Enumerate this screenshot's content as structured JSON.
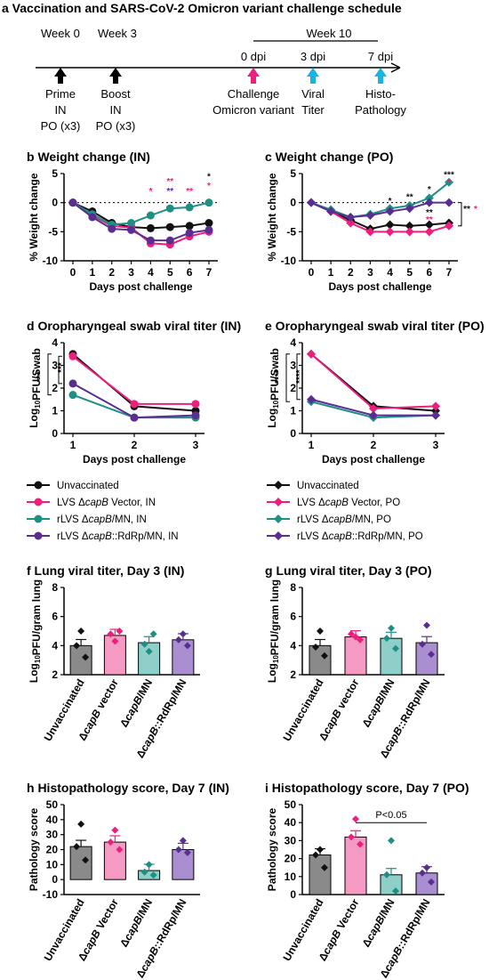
{
  "colors": {
    "black": "#111111",
    "pink": "#ee1e7d",
    "teal": "#1f8f84",
    "purple": "#5a2d91",
    "cyan": "#1ab3e6",
    "bar_black": "#8a8a8a",
    "bar_pink": "#f59ac2",
    "bar_teal": "#8fcfca",
    "bar_purple": "#a98fd0"
  },
  "schedule": {
    "title": "a Vaccination and SARS-CoV-2 Omicron variant challenge schedule",
    "week0": "Week 0",
    "week3": "Week 3",
    "week10": "Week 10",
    "prime": [
      "Prime",
      "IN",
      "PO (x3)"
    ],
    "boost": [
      "Boost",
      "IN",
      "PO (x3)"
    ],
    "dpi0": "0 dpi",
    "dpi3": "3 dpi",
    "dpi7": "7 dpi",
    "challenge": [
      "Challenge",
      "Omicron variant"
    ],
    "viral": [
      "Viral",
      "Titer"
    ],
    "histo": [
      "Histo-",
      "Pathology"
    ]
  },
  "legend_in": [
    "Unvaccinated",
    "LVS ΔcapB Vector,  IN",
    "rLVS ΔcapB/MN,  IN",
    "rLVS ΔcapB::RdRp/MN, IN"
  ],
  "legend_po": [
    "Unvaccinated",
    "LVS ΔcapB Vector,  PO",
    "rLVS ΔcapB/MN,  PO",
    "rLVS ΔcapB::RdRp/MN,  PO"
  ],
  "chart_data": [
    {
      "id": "b",
      "type": "line",
      "title": "b  Weight change (IN)",
      "ylabel": "% Weight change",
      "xlabel": "Days post challenge",
      "x": [
        0,
        1,
        2,
        3,
        4,
        5,
        6,
        7
      ],
      "ylim": [
        -10,
        5
      ],
      "yticks": [
        -10,
        -5,
        0,
        5
      ],
      "series": [
        {
          "name": "Unvaccinated",
          "values": [
            0,
            -1.5,
            -3.5,
            -4.2,
            -4.4,
            -4.2,
            -4.0,
            -3.5
          ]
        },
        {
          "name": "LVS ΔcapB Vector, IN",
          "values": [
            0,
            -2.2,
            -4.0,
            -4.3,
            -7.0,
            -7.2,
            -5.8,
            -5.0
          ]
        },
        {
          "name": "rLVS ΔcapB/MN, IN",
          "values": [
            0,
            -2.0,
            -3.8,
            -3.5,
            -2.2,
            -1.0,
            -0.8,
            0
          ]
        },
        {
          "name": "rLVS ΔcapB::RdRp/MN, IN",
          "values": [
            0,
            -2.5,
            -4.5,
            -4.7,
            -6.5,
            -6.5,
            -5.2,
            -4.7
          ]
        }
      ]
    },
    {
      "id": "c",
      "type": "line",
      "title": "c  Weight change (PO)",
      "ylabel": "% Weight change",
      "xlabel": "Days post challenge",
      "x": [
        0,
        1,
        2,
        3,
        4,
        5,
        6,
        7
      ],
      "ylim": [
        -10,
        5
      ],
      "yticks": [
        -10,
        -5,
        0,
        5
      ],
      "series": [
        {
          "name": "Unvaccinated",
          "values": [
            0,
            -1.5,
            -3.0,
            -4.5,
            -3.8,
            -4.0,
            -3.8,
            -3.5
          ]
        },
        {
          "name": "LVS ΔcapB Vector, PO",
          "values": [
            0,
            -1.5,
            -3.5,
            -5.0,
            -5.0,
            -5.0,
            -5.0,
            -4.0
          ]
        },
        {
          "name": "rLVS ΔcapB/MN, PO",
          "values": [
            0,
            -1.2,
            -2.5,
            -2.0,
            -1.0,
            -0.5,
            0.8,
            3.5
          ]
        },
        {
          "name": "rLVS ΔcapB::RdRp/MN, PO",
          "values": [
            0,
            -1.5,
            -2.5,
            -2.2,
            -1.5,
            -1.0,
            0,
            0
          ]
        }
      ]
    },
    {
      "id": "d",
      "type": "line",
      "title": "d  Oropharyngeal swab viral titer (IN)",
      "ylabel": "Log10PFU/Swab",
      "xlabel": "Days post challenge",
      "x": [
        1,
        2,
        3
      ],
      "ylim": [
        0,
        4
      ],
      "yticks": [
        0,
        1,
        2,
        3,
        4
      ],
      "series": [
        {
          "name": "Unvaccinated",
          "values": [
            3.5,
            1.2,
            1.0
          ]
        },
        {
          "name": "LVS ΔcapB Vector, IN",
          "values": [
            3.4,
            1.3,
            1.3
          ]
        },
        {
          "name": "rLVS ΔcapB/MN, IN",
          "values": [
            1.7,
            0.7,
            0.7
          ]
        },
        {
          "name": "rLVS ΔcapB::RdRp/MN, IN",
          "values": [
            2.2,
            0.7,
            0.8
          ]
        }
      ]
    },
    {
      "id": "e",
      "type": "line",
      "title": "e  Oropharyngeal swab viral titer (PO)",
      "ylabel": "Log10PFU/Swab",
      "xlabel": "Days post challenge",
      "x": [
        1,
        2,
        3
      ],
      "ylim": [
        0,
        4
      ],
      "yticks": [
        0,
        1,
        2,
        3,
        4
      ],
      "series": [
        {
          "name": "Unvaccinated",
          "values": [
            3.5,
            1.2,
            1.0
          ]
        },
        {
          "name": "LVS ΔcapB Vector, PO",
          "values": [
            3.5,
            1.1,
            1.2
          ]
        },
        {
          "name": "rLVS ΔcapB/MN, PO",
          "values": [
            1.4,
            0.7,
            0.8
          ]
        },
        {
          "name": "rLVS ΔcapB::RdRp/MN, PO",
          "values": [
            1.5,
            0.8,
            0.8
          ]
        }
      ]
    },
    {
      "id": "f",
      "type": "bar",
      "title": "f  Lung viral titer, Day 3 (IN)",
      "ylabel": "Log10PFU/gram lung",
      "categories": [
        "Unvaccinated",
        "ΔcapB vector",
        "ΔcapB/MN",
        "ΔcapB::RdRp/MN"
      ],
      "values": [
        4.0,
        4.7,
        4.2,
        4.4
      ],
      "ylim": [
        2,
        8
      ],
      "yticks": [
        2,
        4,
        6,
        8
      ]
    },
    {
      "id": "g",
      "type": "bar",
      "title": "g  Lung viral titer, Day 3 (PO)",
      "ylabel": "Log10PFU/gram lung",
      "categories": [
        "Unvaccinated",
        "ΔcapB vector",
        "ΔcapB/MN",
        "ΔcapB::RdRp/MN"
      ],
      "values": [
        4.0,
        4.6,
        4.5,
        4.2
      ],
      "ylim": [
        2,
        8
      ],
      "yticks": [
        2,
        4,
        6,
        8
      ]
    },
    {
      "id": "h",
      "type": "bar",
      "title": "h  Histopathology score, Day 7 (IN)",
      "ylabel": "Pathology score",
      "categories": [
        "Unvaccinated",
        "ΔcapB Vector",
        "ΔcapB/MN",
        "ΔcapB::RdRp/MN"
      ],
      "values": [
        22,
        25,
        6,
        20
      ],
      "ylim": [
        -10,
        50
      ],
      "yticks": [
        -10,
        0,
        10,
        20,
        30,
        40,
        50
      ]
    },
    {
      "id": "i",
      "type": "bar",
      "title": "i  Histopathology score, Day 7 (PO)",
      "ylabel": "Pathology score",
      "categories": [
        "Unvaccinated",
        "ΔcapB Vector",
        "ΔcapB/MN",
        "ΔcapB::RdRp/MN"
      ],
      "values": [
        22,
        32,
        11,
        12
      ],
      "ylim": [
        0,
        50
      ],
      "yticks": [
        0,
        10,
        20,
        30,
        40,
        50
      ],
      "annotation": "P<0.05"
    }
  ]
}
